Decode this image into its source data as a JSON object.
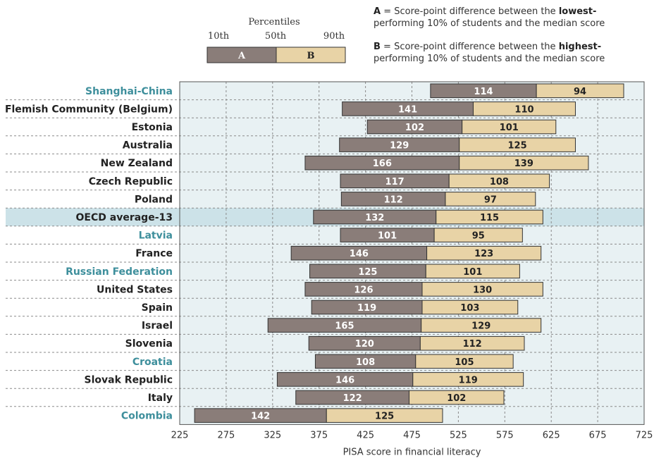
{
  "legend": {
    "title": "Percentiles",
    "p10": "10th",
    "p50": "50th",
    "p90": "90th",
    "a_label": "A",
    "b_label": "B",
    "a_color": "#8a7d79",
    "b_color": "#e8d3a6"
  },
  "notes": {
    "a": {
      "key": "A",
      "pre": " = Score-point difference between the ",
      "bold": "lowest-",
      "post": " performing 10% of students and the median score"
    },
    "b": {
      "key": "B",
      "pre": " = Score-point difference between the ",
      "bold": "highest-",
      "post": " performing 10% of students and the median score"
    }
  },
  "colors": {
    "plot_bg": "#e8f1f3",
    "highlight_row": "#cce2e8",
    "teal_label": "#3e8f9c",
    "dark_label": "#222222"
  },
  "chart_data": {
    "type": "bar",
    "xlabel": "PISA score in financial literacy",
    "xlim": [
      225,
      725
    ],
    "xticks": [
      225,
      275,
      325,
      375,
      425,
      475,
      525,
      575,
      625,
      675,
      725
    ],
    "grid": true,
    "categories": [
      "Shanghai-China",
      "Flemish Community (Belgium)",
      "Estonia",
      "Australia",
      "New Zealand",
      "Czech Republic",
      "Poland",
      "OECD average-13",
      "Latvia",
      "France",
      "Russian Federation",
      "United States",
      "Spain",
      "Israel",
      "Slovenia",
      "Croatia",
      "Slovak Republic",
      "Italy",
      "Colombia"
    ],
    "label_style": [
      "teal",
      "dark",
      "dark",
      "dark",
      "dark",
      "dark",
      "dark",
      "dark-highlight",
      "teal",
      "dark",
      "teal",
      "dark",
      "dark",
      "dark",
      "dark",
      "teal",
      "dark",
      "dark",
      "teal"
    ],
    "median": [
      609,
      541,
      529,
      526,
      526,
      515,
      511,
      501,
      499,
      491,
      490,
      486,
      486,
      485,
      484,
      479,
      476,
      472,
      383
    ],
    "series": [
      {
        "name": "A",
        "values": [
          114,
          141,
          102,
          129,
          166,
          117,
          112,
          132,
          101,
          146,
          125,
          126,
          119,
          165,
          120,
          108,
          146,
          122,
          142
        ]
      },
      {
        "name": "B",
        "values": [
          94,
          110,
          101,
          125,
          139,
          108,
          97,
          115,
          95,
          123,
          101,
          130,
          103,
          129,
          112,
          105,
          119,
          102,
          125
        ]
      }
    ]
  }
}
